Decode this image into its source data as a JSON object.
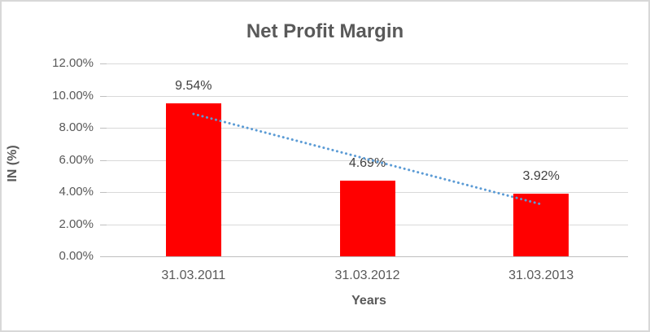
{
  "chart_data": {
    "type": "bar",
    "title": "Net Profit Margin",
    "xlabel": "Years",
    "ylabel": "IN (%)",
    "categories": [
      "31.03.2011",
      "31.03.2012",
      "31.03.2013"
    ],
    "values": [
      9.54,
      4.69,
      3.92
    ],
    "data_labels": [
      "9.54%",
      "4.69%",
      "3.92%"
    ],
    "y_tick_labels": [
      "0.00%",
      "2.00%",
      "4.00%",
      "6.00%",
      "8.00%",
      "10.00%",
      "12.00%"
    ],
    "y_tick_step": 2,
    "ylim": [
      0,
      12
    ],
    "grid": true,
    "legend": false,
    "bar_color": "#ff0000",
    "trendline": {
      "type": "linear",
      "style": "dotted",
      "color": "#5b9bd5",
      "fitted_endpoint_values": [
        8.86,
        3.24
      ]
    }
  },
  "colors": {
    "title_text": "#595959",
    "axis_title_text": "#595959",
    "tick_label_text": "#595959",
    "data_label_text": "#404040",
    "gridline": "#d9d9d9",
    "axis_line": "#bfbfbf",
    "frame_border": "#d8d8d8",
    "background": "#ffffff"
  }
}
